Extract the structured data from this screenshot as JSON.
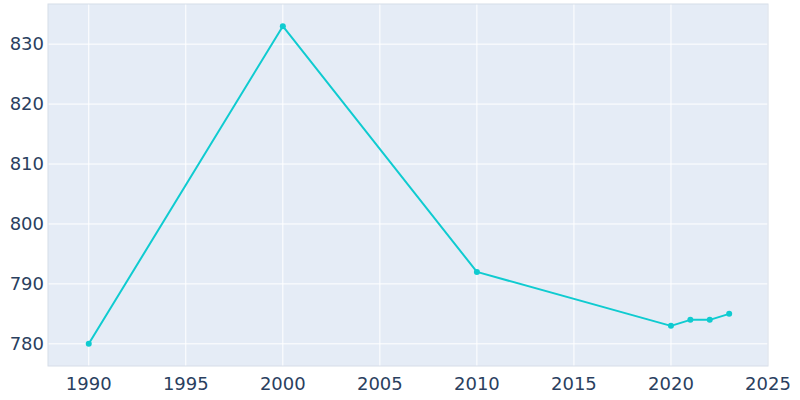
{
  "chart_data": {
    "type": "line",
    "x": [
      1990,
      2000,
      2010,
      2020,
      2021,
      2022,
      2023
    ],
    "values": [
      780,
      833,
      792,
      783,
      784,
      784,
      785
    ],
    "color": "#0fcbd0",
    "marker": "circle",
    "xlim": [
      1987.9,
      2025
    ],
    "ylim": [
      776.3,
      836.7
    ],
    "xticks": [
      1990,
      1995,
      2000,
      2005,
      2010,
      2015,
      2020,
      2025
    ],
    "yticks": [
      780,
      790,
      800,
      810,
      820,
      830
    ],
    "grid": true
  }
}
